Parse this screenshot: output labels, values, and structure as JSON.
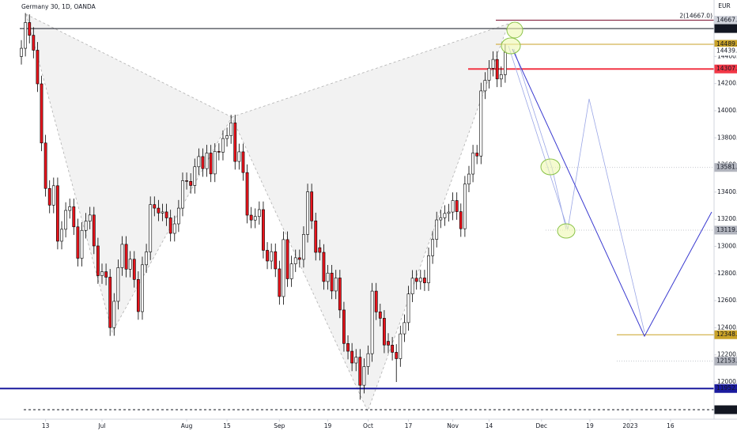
{
  "chart_data": {
    "type": "candlestick",
    "title": "Germany 30, 1D, OANDA",
    "currency": "EUR",
    "up_color": "#ffffff",
    "down_color": "#e8141c",
    "outline_color": "#000000",
    "xlim": [
      -5.3,
      171.8
    ],
    "ylim": [
      11726,
      14816
    ],
    "xticks": [
      {
        "value": 6,
        "label": "13"
      },
      {
        "value": 20,
        "label": "Jul"
      },
      {
        "value": 41,
        "label": "Aug"
      },
      {
        "value": 51,
        "label": "15"
      },
      {
        "value": 64,
        "label": "Sep"
      },
      {
        "value": 76,
        "label": "19"
      },
      {
        "value": 86,
        "label": "Oct"
      },
      {
        "value": 96,
        "label": "17"
      },
      {
        "value": 107,
        "label": "Nov"
      },
      {
        "value": 116,
        "label": "14"
      },
      {
        "value": 129,
        "label": "Dec"
      },
      {
        "value": 141,
        "label": "19"
      },
      {
        "value": 151,
        "label": "2023"
      },
      {
        "value": 161,
        "label": "16"
      }
    ],
    "yticks": [
      {
        "value": 12000,
        "label": "12000.0"
      },
      {
        "value": 12200,
        "label": "12200.0"
      },
      {
        "value": 12400,
        "label": "12400.0"
      },
      {
        "value": 12600,
        "label": "12600.0"
      },
      {
        "value": 12800,
        "label": "12800.0"
      },
      {
        "value": 13000,
        "label": "13000.0"
      },
      {
        "value": 13200,
        "label": "13200.0"
      },
      {
        "value": 13400,
        "label": "13400.0"
      },
      {
        "value": 13600,
        "label": "13600.0"
      },
      {
        "value": 13800,
        "label": "13800.0"
      },
      {
        "value": 14000,
        "label": "14000.0"
      },
      {
        "value": 14200,
        "label": "14200.0"
      },
      {
        "value": 14400,
        "label": "14400.0"
      }
    ],
    "levels": [
      {
        "value": 14667.0,
        "label": "14667.0",
        "note": "2(14667.0)",
        "color": "#7b1230",
        "bg": "#d1d4dc",
        "style": "solid"
      },
      {
        "value": 14605.6,
        "label": "14605.6",
        "color": "#131722",
        "bg": "#131722",
        "style": "solid"
      },
      {
        "value": 14489.4,
        "label": "14489.4",
        "color": "#c9a227",
        "bg": "#c9a227",
        "style": "solid"
      },
      {
        "value": 14439.6,
        "label": "14439.6",
        "color": "#ffffff",
        "bg": "#ffffff",
        "style": "none"
      },
      {
        "value": 14307.6,
        "label": "14307.6",
        "color": "#f23645",
        "bg": "#f23645",
        "style": "thick"
      },
      {
        "value": 13581.6,
        "label": "13581.6",
        "color": "#b2b5be",
        "bg": "#b2b5be",
        "style": "dotted"
      },
      {
        "value": 13119.6,
        "label": "13119.6",
        "color": "#b2b5be",
        "bg": "#b2b5be",
        "style": "dotted"
      },
      {
        "value": 12348.6,
        "label": "12348.6",
        "color": "#c9a227",
        "bg": "#c9a227",
        "style": "solid"
      },
      {
        "value": 12153.6,
        "label": "12153.6",
        "color": "#b2b5be",
        "bg": "#b2b5be",
        "style": "dotted"
      },
      {
        "value": 11952.0,
        "label": "11952.0",
        "color": "#1a1a9e",
        "bg": "#1a1a9e",
        "style": "thick"
      },
      {
        "value": 11795.8,
        "label": "11795.8",
        "color": "#131722",
        "bg": "#131722",
        "style": "dashed"
      }
    ],
    "candles": [
      [
        14400,
        14520,
        14340,
        14460
      ],
      [
        14460,
        14720,
        14400,
        14650
      ],
      [
        14650,
        14710,
        14496,
        14556
      ],
      [
        14556,
        14616,
        14386,
        14446
      ],
      [
        14446,
        14506,
        14138,
        14198
      ],
      [
        14198,
        14258,
        13702,
        13762
      ],
      [
        13762,
        13822,
        13367,
        13427
      ],
      [
        13427,
        13487,
        13244,
        13304
      ],
      [
        13304,
        13507,
        13244,
        13447
      ],
      [
        13447,
        13507,
        12978,
        13038
      ],
      [
        13038,
        13186,
        12978,
        13126
      ],
      [
        13126,
        13325,
        13066,
        13265
      ],
      [
        13265,
        13352,
        13205,
        13292
      ],
      [
        13292,
        13352,
        13084,
        13144
      ],
      [
        13144,
        13204,
        12852,
        12912
      ],
      [
        12912,
        13178,
        12852,
        13118
      ],
      [
        13118,
        13246,
        13058,
        13186
      ],
      [
        13186,
        13291,
        13126,
        13231
      ],
      [
        13231,
        13291,
        12943,
        13003
      ],
      [
        13003,
        13063,
        12724,
        12784
      ],
      [
        12784,
        12873,
        12724,
        12813
      ],
      [
        12813,
        12873,
        12713,
        12773
      ],
      [
        12773,
        12833,
        12340,
        12401
      ],
      [
        12401,
        12655,
        12341,
        12595
      ],
      [
        12595,
        12903,
        12535,
        12843
      ],
      [
        12843,
        13075,
        12783,
        13015
      ],
      [
        13015,
        13075,
        12772,
        12832
      ],
      [
        12832,
        12965,
        12772,
        12905
      ],
      [
        12905,
        12965,
        12696,
        12756
      ],
      [
        12756,
        12816,
        12459,
        12519
      ],
      [
        12519,
        12924,
        12459,
        12864
      ],
      [
        12864,
        13019,
        12804,
        12959
      ],
      [
        12959,
        13368,
        12899,
        13308
      ],
      [
        13308,
        13368,
        13222,
        13282
      ],
      [
        13282,
        13342,
        13186,
        13246
      ],
      [
        13246,
        13314,
        13186,
        13254
      ],
      [
        13254,
        13314,
        13150,
        13210
      ],
      [
        13210,
        13270,
        13036,
        13096
      ],
      [
        13096,
        13226,
        13036,
        13166
      ],
      [
        13166,
        13342,
        13106,
        13282
      ],
      [
        13282,
        13544,
        13222,
        13484
      ],
      [
        13484,
        13544,
        13419,
        13479
      ],
      [
        13479,
        13539,
        13389,
        13449
      ],
      [
        13449,
        13647,
        13389,
        13587
      ],
      [
        13587,
        13722,
        13527,
        13662
      ],
      [
        13662,
        13722,
        13513,
        13573
      ],
      [
        13573,
        13748,
        13513,
        13688
      ],
      [
        13688,
        13748,
        13474,
        13534
      ],
      [
        13534,
        13760,
        13474,
        13700
      ],
      [
        13700,
        13760,
        13634,
        13694
      ],
      [
        13694,
        13855,
        13634,
        13795
      ],
      [
        13795,
        13876,
        13735,
        13816
      ],
      [
        13816,
        13970,
        13756,
        13910
      ],
      [
        13910,
        13970,
        13566,
        13626
      ],
      [
        13626,
        13757,
        13566,
        13697
      ],
      [
        13697,
        13757,
        13484,
        13544
      ],
      [
        13544,
        13604,
        13170,
        13230
      ],
      [
        13230,
        13290,
        13134,
        13194
      ],
      [
        13194,
        13280,
        13134,
        13220
      ],
      [
        13220,
        13331,
        13160,
        13271
      ],
      [
        13271,
        13331,
        12911,
        12971
      ],
      [
        12971,
        13031,
        12832,
        12892
      ],
      [
        12892,
        13021,
        12832,
        12961
      ],
      [
        12961,
        13021,
        12774,
        12834
      ],
      [
        12834,
        12894,
        12570,
        12630
      ],
      [
        12630,
        13110,
        12570,
        13050
      ],
      [
        13050,
        13110,
        12701,
        12761
      ],
      [
        12761,
        12931,
        12701,
        12871
      ],
      [
        12871,
        12976,
        12811,
        12916
      ],
      [
        12916,
        12976,
        12844,
        12904
      ],
      [
        12904,
        13148,
        12844,
        13088
      ],
      [
        13088,
        13462,
        13028,
        13402
      ],
      [
        13402,
        13462,
        13128,
        13188
      ],
      [
        13188,
        13248,
        12896,
        12956
      ],
      [
        12990,
        13050,
        12896,
        12956
      ],
      [
        12956,
        13016,
        12681,
        12741
      ],
      [
        12741,
        12863,
        12681,
        12803
      ],
      [
        12803,
        12863,
        12611,
        12671
      ],
      [
        12671,
        12827,
        12611,
        12767
      ],
      [
        12767,
        12827,
        12471,
        12531
      ],
      [
        12531,
        12591,
        12224,
        12284
      ],
      [
        12284,
        12344,
        12167,
        12227
      ],
      [
        12227,
        12287,
        12080,
        12140
      ],
      [
        12140,
        12243,
        12080,
        12183
      ],
      [
        12183,
        12243,
        11870,
        11976
      ],
      [
        11976,
        12174,
        11916,
        12114
      ],
      [
        12114,
        12269,
        12054,
        12209
      ],
      [
        12209,
        12730,
        12149,
        12670
      ],
      [
        12670,
        12730,
        12457,
        12517
      ],
      [
        12517,
        12577,
        12410,
        12470
      ],
      [
        12470,
        12530,
        12213,
        12273
      ],
      [
        12300,
        12360,
        12212,
        12272
      ],
      [
        12272,
        12332,
        12159,
        12219
      ],
      [
        12219,
        12279,
        12000,
        12172
      ],
      [
        12172,
        12415,
        12112,
        12355
      ],
      [
        12355,
        12498,
        12295,
        12438
      ],
      [
        12438,
        12709,
        12378,
        12649
      ],
      [
        12649,
        12825,
        12589,
        12765
      ],
      [
        12765,
        12825,
        12681,
        12741
      ],
      [
        12741,
        12827,
        12681,
        12767
      ],
      [
        12767,
        12827,
        12671,
        12731
      ],
      [
        12731,
        12991,
        12671,
        12931
      ],
      [
        12931,
        13112,
        12871,
        13052
      ],
      [
        13052,
        13255,
        12992,
        13195
      ],
      [
        13195,
        13271,
        13135,
        13211
      ],
      [
        13211,
        13303,
        13151,
        13243
      ],
      [
        13243,
        13313,
        13183,
        13253
      ],
      [
        13253,
        13398,
        13193,
        13338
      ],
      [
        13338,
        13398,
        13196,
        13256
      ],
      [
        13256,
        13316,
        13070,
        13130
      ],
      [
        13130,
        13519,
        13070,
        13459
      ],
      [
        13459,
        13593,
        13399,
        13533
      ],
      [
        13533,
        13748,
        13473,
        13688
      ],
      [
        13688,
        13748,
        13606,
        13666
      ],
      [
        13666,
        14206,
        13606,
        14146
      ],
      [
        14146,
        14284,
        14086,
        14224
      ],
      [
        14224,
        14373,
        14164,
        14313
      ],
      [
        14313,
        14438,
        14253,
        14378
      ],
      [
        14378,
        14438,
        14174,
        14234
      ],
      [
        14234,
        14326,
        14174,
        14266
      ],
      [
        14266,
        14491,
        14206,
        14431
      ]
    ]
  }
}
